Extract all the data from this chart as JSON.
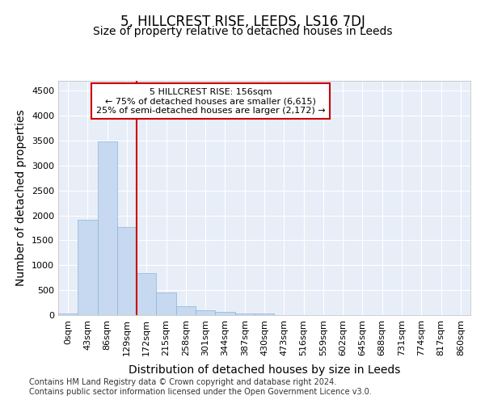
{
  "title": "5, HILLCREST RISE, LEEDS, LS16 7DJ",
  "subtitle": "Size of property relative to detached houses in Leeds",
  "xlabel": "Distribution of detached houses by size in Leeds",
  "ylabel": "Number of detached properties",
  "footnote1": "Contains HM Land Registry data © Crown copyright and database right 2024.",
  "footnote2": "Contains public sector information licensed under the Open Government Licence v3.0.",
  "annotation_line1": "5 HILLCREST RISE: 156sqm",
  "annotation_line2": "← 75% of detached houses are smaller (6,615)",
  "annotation_line3": "25% of semi-detached houses are larger (2,172) →",
  "bar_categories": [
    "0sqm",
    "43sqm",
    "86sqm",
    "129sqm",
    "172sqm",
    "215sqm",
    "258sqm",
    "301sqm",
    "344sqm",
    "387sqm",
    "430sqm",
    "473sqm",
    "516sqm",
    "559sqm",
    "602sqm",
    "645sqm",
    "688sqm",
    "731sqm",
    "774sqm",
    "817sqm",
    "860sqm"
  ],
  "bar_values": [
    40,
    1920,
    3490,
    1760,
    850,
    450,
    175,
    105,
    65,
    40,
    35,
    0,
    0,
    0,
    0,
    0,
    0,
    0,
    0,
    0,
    0
  ],
  "bar_color": "#c6d9f0",
  "bar_edge_color": "#8ab4d8",
  "background_color": "#ffffff",
  "plot_background": "#e8eef8",
  "grid_color": "#ffffff",
  "vline_x": 4.0,
  "vline_color": "#cc0000",
  "ylim": [
    0,
    4700
  ],
  "yticks": [
    0,
    500,
    1000,
    1500,
    2000,
    2500,
    3000,
    3500,
    4000,
    4500
  ],
  "title_fontsize": 12,
  "subtitle_fontsize": 10,
  "axis_label_fontsize": 10,
  "tick_fontsize": 8,
  "annotation_fontsize": 8,
  "footnote_fontsize": 7
}
